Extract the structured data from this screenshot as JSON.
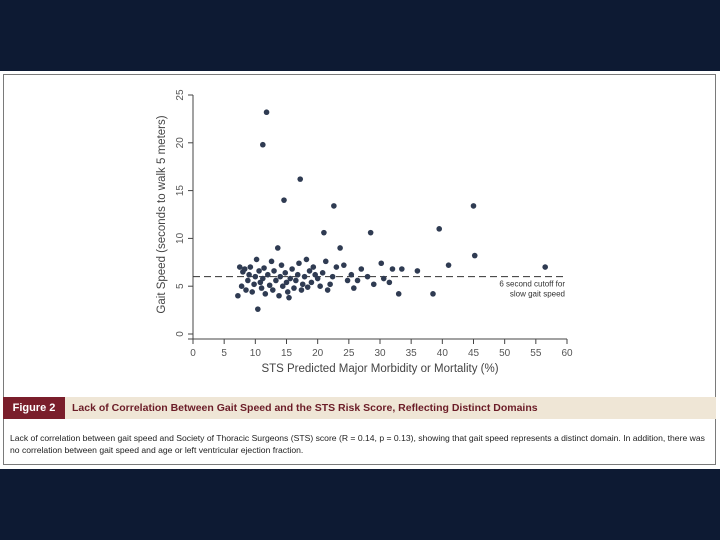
{
  "figure": {
    "tag": "Figure 2",
    "title": "Lack of Correlation Between Gait Speed and the STS Risk Score, Reflecting Distinct Domains",
    "caption": "Lack of correlation between gait speed and Society of Thoracic Surgeons (STS) score (R = 0.14, p = 0.13), showing that gait speed represents a distinct domain. In addition, there was no correlation between gait speed and age or left ventricular ejection fraction."
  },
  "colors": {
    "background": "#0d1a33",
    "point": "#2f3b52",
    "tag": "#7a1e2b",
    "band": "#efe6d6"
  },
  "chart_data": {
    "type": "scatter",
    "xlabel": "STS Predicted Major Morbidity or Mortality (%)",
    "ylabel": "Gait Speed (seconds to walk 5 meters)",
    "xlim": [
      0,
      60
    ],
    "ylim": [
      0,
      25
    ],
    "xticks": [
      0,
      5,
      10,
      15,
      20,
      25,
      30,
      35,
      40,
      45,
      50,
      55,
      60
    ],
    "yticks": [
      0,
      5,
      10,
      15,
      20,
      25
    ],
    "grid": false,
    "reference_line": {
      "y": 6,
      "style": "dashed",
      "label_line1": "6 second cutoff for",
      "label_line2": "slow gait speed"
    },
    "points": [
      [
        7.2,
        4.0
      ],
      [
        7.5,
        7.0
      ],
      [
        7.8,
        5.0
      ],
      [
        8.0,
        6.5
      ],
      [
        8.3,
        6.8
      ],
      [
        8.5,
        4.6
      ],
      [
        8.8,
        5.6
      ],
      [
        9.0,
        6.2
      ],
      [
        9.2,
        7.0
      ],
      [
        9.5,
        4.4
      ],
      [
        9.8,
        5.2
      ],
      [
        10.0,
        6.0
      ],
      [
        10.2,
        7.8
      ],
      [
        10.4,
        2.6
      ],
      [
        10.6,
        6.6
      ],
      [
        10.8,
        5.4
      ],
      [
        11.0,
        4.8
      ],
      [
        11.2,
        5.8
      ],
      [
        11.4,
        6.9
      ],
      [
        11.6,
        4.2
      ],
      [
        11.2,
        19.8
      ],
      [
        11.8,
        23.2
      ],
      [
        12.0,
        6.2
      ],
      [
        12.3,
        5.1
      ],
      [
        12.6,
        7.6
      ],
      [
        12.8,
        4.6
      ],
      [
        13.0,
        6.6
      ],
      [
        13.3,
        5.6
      ],
      [
        13.6,
        9.0
      ],
      [
        13.8,
        4.0
      ],
      [
        14.0,
        6.0
      ],
      [
        14.2,
        7.2
      ],
      [
        14.4,
        5.0
      ],
      [
        14.6,
        14.0
      ],
      [
        14.8,
        6.4
      ],
      [
        15.0,
        5.4
      ],
      [
        15.2,
        4.4
      ],
      [
        15.4,
        3.8
      ],
      [
        15.6,
        5.8
      ],
      [
        15.9,
        6.8
      ],
      [
        16.2,
        4.8
      ],
      [
        16.5,
        5.6
      ],
      [
        16.8,
        6.2
      ],
      [
        17.0,
        7.4
      ],
      [
        17.2,
        16.2
      ],
      [
        17.4,
        4.6
      ],
      [
        17.6,
        5.2
      ],
      [
        17.9,
        6.0
      ],
      [
        18.2,
        7.8
      ],
      [
        18.4,
        4.9
      ],
      [
        18.7,
        6.6
      ],
      [
        19.0,
        5.4
      ],
      [
        19.3,
        7.0
      ],
      [
        19.6,
        6.2
      ],
      [
        20.0,
        5.8
      ],
      [
        20.4,
        5.0
      ],
      [
        20.8,
        6.4
      ],
      [
        21.0,
        10.6
      ],
      [
        21.3,
        7.6
      ],
      [
        21.6,
        4.6
      ],
      [
        22.0,
        5.2
      ],
      [
        22.4,
        6.0
      ],
      [
        22.6,
        13.4
      ],
      [
        23.0,
        7.0
      ],
      [
        23.6,
        9.0
      ],
      [
        24.2,
        7.2
      ],
      [
        24.8,
        5.6
      ],
      [
        25.4,
        6.2
      ],
      [
        25.8,
        4.8
      ],
      [
        26.4,
        5.6
      ],
      [
        27.0,
        6.8
      ],
      [
        28.0,
        6.0
      ],
      [
        28.5,
        10.6
      ],
      [
        29.0,
        5.2
      ],
      [
        30.2,
        7.4
      ],
      [
        30.6,
        5.8
      ],
      [
        31.5,
        5.4
      ],
      [
        32.0,
        6.8
      ],
      [
        33.0,
        4.2
      ],
      [
        33.5,
        6.8
      ],
      [
        36.0,
        6.6
      ],
      [
        38.5,
        4.2
      ],
      [
        39.5,
        11.0
      ],
      [
        41.0,
        7.2
      ],
      [
        45.0,
        13.4
      ],
      [
        45.2,
        8.2
      ],
      [
        56.5,
        7.0
      ]
    ]
  }
}
